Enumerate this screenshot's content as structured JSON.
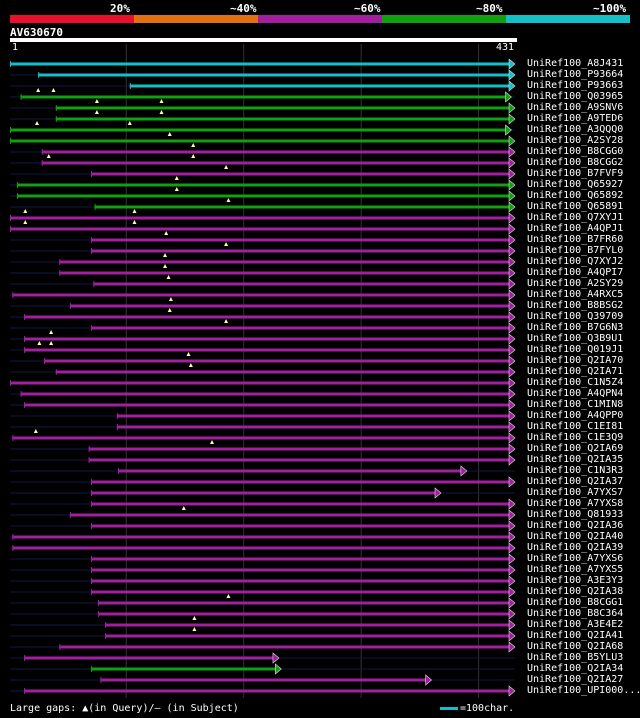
{
  "legend": {
    "labels": [
      "20%",
      "~40%",
      "~60%",
      "~80%",
      "~100%"
    ],
    "colors": [
      "#e8102a",
      "#e07010",
      "#a020a0",
      "#10a010",
      "#14c0c8"
    ]
  },
  "query": {
    "name": "AV630670",
    "start": "1",
    "end": "431"
  },
  "chart_data": {
    "type": "alignment",
    "query_length": 431,
    "hits": [
      {
        "name": "UniRef100_A8J431",
        "start": 1,
        "end": 431,
        "identity": "~100%",
        "marks": []
      },
      {
        "name": "UniRef100_P93664",
        "start": 25,
        "end": 431,
        "identity": "~100%",
        "marks": []
      },
      {
        "name": "UniRef100_P93663",
        "start": 103,
        "end": 431,
        "identity": "~100%",
        "marks": []
      },
      {
        "name": "UniRef100_Q03965",
        "start": 10,
        "end": 428,
        "identity": "~80%",
        "marks": [
          25,
          38
        ]
      },
      {
        "name": "UniRef100_A9SNV6",
        "start": 40,
        "end": 431,
        "identity": "~80%",
        "marks": [
          75,
          130
        ]
      },
      {
        "name": "UniRef100_A9TED6",
        "start": 40,
        "end": 431,
        "identity": "~80%",
        "marks": [
          75,
          130
        ]
      },
      {
        "name": "UniRef100_A3QQQ0",
        "start": 1,
        "end": 428,
        "identity": "~80%",
        "marks": [
          24,
          103
        ]
      },
      {
        "name": "UniRef100_A2SY28",
        "start": 1,
        "end": 431,
        "identity": "~80%",
        "marks": [
          137
        ]
      },
      {
        "name": "UniRef100_B8CGG0",
        "start": 28,
        "end": 431,
        "identity": "~60%",
        "marks": [
          157
        ]
      },
      {
        "name": "UniRef100_B8CGG2",
        "start": 28,
        "end": 431,
        "identity": "~60%",
        "marks": [
          34,
          157
        ]
      },
      {
        "name": "UniRef100_B7FVF9",
        "start": 70,
        "end": 431,
        "identity": "~60%",
        "marks": [
          185
        ]
      },
      {
        "name": "UniRef100_Q65927",
        "start": 7,
        "end": 431,
        "identity": "~80%",
        "marks": [
          143
        ]
      },
      {
        "name": "UniRef100_Q65892",
        "start": 7,
        "end": 431,
        "identity": "~80%",
        "marks": [
          143
        ]
      },
      {
        "name": "UniRef100_Q65891",
        "start": 73,
        "end": 431,
        "identity": "~80%",
        "marks": [
          187
        ]
      },
      {
        "name": "UniRef100_Q7XYJ1",
        "start": 1,
        "end": 431,
        "identity": "~60%",
        "marks": [
          14,
          107
        ]
      },
      {
        "name": "UniRef100_A4QPJ1",
        "start": 1,
        "end": 431,
        "identity": "~60%",
        "marks": [
          14,
          107
        ]
      },
      {
        "name": "UniRef100_B7FR60",
        "start": 70,
        "end": 431,
        "identity": "~60%",
        "marks": [
          134
        ]
      },
      {
        "name": "UniRef100_B7FYL0",
        "start": 70,
        "end": 431,
        "identity": "~60%",
        "marks": [
          185
        ]
      },
      {
        "name": "UniRef100_Q7XYJ2",
        "start": 43,
        "end": 431,
        "identity": "~60%",
        "marks": [
          133
        ]
      },
      {
        "name": "UniRef100_A4QPI7",
        "start": 43,
        "end": 431,
        "identity": "~60%",
        "marks": [
          133
        ]
      },
      {
        "name": "UniRef100_A2SY29",
        "start": 72,
        "end": 431,
        "identity": "~60%",
        "marks": [
          136
        ]
      },
      {
        "name": "UniRef100_A4RXC5",
        "start": 3,
        "end": 431,
        "identity": "~60%",
        "marks": []
      },
      {
        "name": "UniRef100_B8BSG2",
        "start": 52,
        "end": 431,
        "identity": "~60%",
        "marks": [
          138
        ]
      },
      {
        "name": "UniRef100_Q39709",
        "start": 13,
        "end": 431,
        "identity": "~60%",
        "marks": [
          137
        ]
      },
      {
        "name": "UniRef100_B7G6N3",
        "start": 70,
        "end": 431,
        "identity": "~60%",
        "marks": [
          185
        ]
      },
      {
        "name": "UniRef100_Q3B9U1",
        "start": 13,
        "end": 431,
        "identity": "~60%",
        "marks": [
          36
        ]
      },
      {
        "name": "UniRef100_Q019J1",
        "start": 13,
        "end": 431,
        "identity": "~60%",
        "marks": [
          26,
          36
        ]
      },
      {
        "name": "UniRef100_Q2IA70",
        "start": 30,
        "end": 431,
        "identity": "~60%",
        "marks": [
          153
        ]
      },
      {
        "name": "UniRef100_Q2IA71",
        "start": 40,
        "end": 431,
        "identity": "~60%",
        "marks": [
          155
        ]
      },
      {
        "name": "UniRef100_C1N5Z4",
        "start": 1,
        "end": 431,
        "identity": "~60%",
        "marks": []
      },
      {
        "name": "UniRef100_A4QPN4",
        "start": 10,
        "end": 431,
        "identity": "~60%",
        "marks": []
      },
      {
        "name": "UniRef100_C1MIN8",
        "start": 13,
        "end": 431,
        "identity": "~60%",
        "marks": []
      },
      {
        "name": "UniRef100_A4QPP0",
        "start": 92,
        "end": 431,
        "identity": "~60%",
        "marks": []
      },
      {
        "name": "UniRef100_C1EI81",
        "start": 92,
        "end": 431,
        "identity": "~60%",
        "marks": []
      },
      {
        "name": "UniRef100_C1E3Q9",
        "start": 3,
        "end": 431,
        "identity": "~60%",
        "marks": [
          23
        ]
      },
      {
        "name": "UniRef100_Q2IA69",
        "start": 68,
        "end": 431,
        "identity": "~60%",
        "marks": [
          173
        ]
      },
      {
        "name": "UniRef100_Q2IA35",
        "start": 68,
        "end": 431,
        "identity": "~60%",
        "marks": []
      },
      {
        "name": "UniRef100_C1N3R3",
        "start": 93,
        "end": 390,
        "identity": "~60%",
        "marks": []
      },
      {
        "name": "UniRef100_Q2IA37",
        "start": 70,
        "end": 431,
        "identity": "~60%",
        "marks": []
      },
      {
        "name": "UniRef100_A7YXS7",
        "start": 70,
        "end": 368,
        "identity": "~60%",
        "marks": []
      },
      {
        "name": "UniRef100_A7YXS8",
        "start": 70,
        "end": 431,
        "identity": "~60%",
        "marks": []
      },
      {
        "name": "UniRef100_Q81933",
        "start": 52,
        "end": 431,
        "identity": "~60%",
        "marks": [
          149
        ]
      },
      {
        "name": "UniRef100_Q2IA36",
        "start": 70,
        "end": 431,
        "identity": "~60%",
        "marks": []
      },
      {
        "name": "UniRef100_Q2IA40",
        "start": 3,
        "end": 431,
        "identity": "~60%",
        "marks": []
      },
      {
        "name": "UniRef100_Q2IA39",
        "start": 3,
        "end": 431,
        "identity": "~60%",
        "marks": []
      },
      {
        "name": "UniRef100_A7YXS6",
        "start": 70,
        "end": 431,
        "identity": "~60%",
        "marks": []
      },
      {
        "name": "UniRef100_A7YXS5",
        "start": 70,
        "end": 431,
        "identity": "~60%",
        "marks": []
      },
      {
        "name": "UniRef100_A3E3Y3",
        "start": 70,
        "end": 431,
        "identity": "~60%",
        "marks": []
      },
      {
        "name": "UniRef100_Q2IA38",
        "start": 70,
        "end": 431,
        "identity": "~60%",
        "marks": []
      },
      {
        "name": "UniRef100_B8CGG1",
        "start": 76,
        "end": 431,
        "identity": "~60%",
        "marks": [
          187
        ]
      },
      {
        "name": "UniRef100_B8C364",
        "start": 76,
        "end": 431,
        "identity": "~60%",
        "marks": []
      },
      {
        "name": "UniRef100_A3E4E2",
        "start": 82,
        "end": 431,
        "identity": "~60%",
        "marks": [
          158
        ]
      },
      {
        "name": "UniRef100_Q2IA41",
        "start": 82,
        "end": 431,
        "identity": "~60%",
        "marks": [
          158
        ]
      },
      {
        "name": "UniRef100_Q2IA68",
        "start": 43,
        "end": 431,
        "identity": "~60%",
        "marks": []
      },
      {
        "name": "UniRef100_B5YLU3",
        "start": 13,
        "end": 230,
        "identity": "~60%",
        "marks": []
      },
      {
        "name": "UniRef100_Q2IA34",
        "start": 70,
        "end": 232,
        "identity": "~80%",
        "marks": []
      },
      {
        "name": "UniRef100_Q2IA27",
        "start": 78,
        "end": 360,
        "identity": "~60%",
        "marks": []
      },
      {
        "name": "UniRef100_UPI000...",
        "start": 13,
        "end": 431,
        "identity": "~60%",
        "marks": []
      }
    ]
  },
  "footer": {
    "text": "Large gaps: ▲(in Query)/– (in Subject)"
  },
  "scale": {
    "text": "=100char."
  }
}
